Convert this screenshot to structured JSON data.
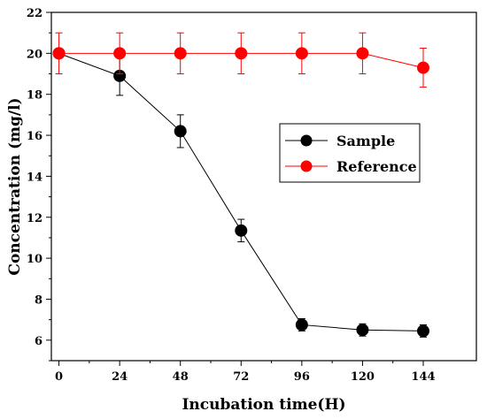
{
  "chart_data": {
    "type": "line",
    "xlabel": "Incubation time(H)",
    "ylabel": "Concentration (mg/l)",
    "xlim": [
      -3,
      165
    ],
    "ylim": [
      5,
      22
    ],
    "x_ticks": [
      0,
      24,
      48,
      72,
      96,
      120,
      144
    ],
    "y_ticks": [
      6,
      8,
      10,
      12,
      14,
      16,
      18,
      20,
      22
    ],
    "x_tick_labels": [
      "0",
      "24",
      "48",
      "72",
      "96",
      "120",
      "144"
    ],
    "y_tick_labels": [
      "6",
      "8",
      "10",
      "12",
      "14",
      "16",
      "18",
      "20",
      "22"
    ],
    "legend_position": "center-right",
    "grid": false,
    "series": [
      {
        "name": "Sample",
        "color": "#000000",
        "x": [
          0,
          24,
          48,
          72,
          96,
          120,
          144
        ],
        "values": [
          20.0,
          18.9,
          16.2,
          11.35,
          6.75,
          6.5,
          6.45
        ],
        "errors": [
          0.0,
          0.95,
          0.8,
          0.55,
          0.3,
          0.3,
          0.3
        ]
      },
      {
        "name": "Reference",
        "color": "#ff0000",
        "x": [
          0,
          24,
          48,
          72,
          96,
          120,
          144
        ],
        "values": [
          20.0,
          20.0,
          20.0,
          20.0,
          20.0,
          20.0,
          19.3
        ],
        "errors": [
          1.0,
          1.0,
          1.0,
          1.0,
          1.0,
          1.0,
          0.95
        ]
      }
    ]
  }
}
